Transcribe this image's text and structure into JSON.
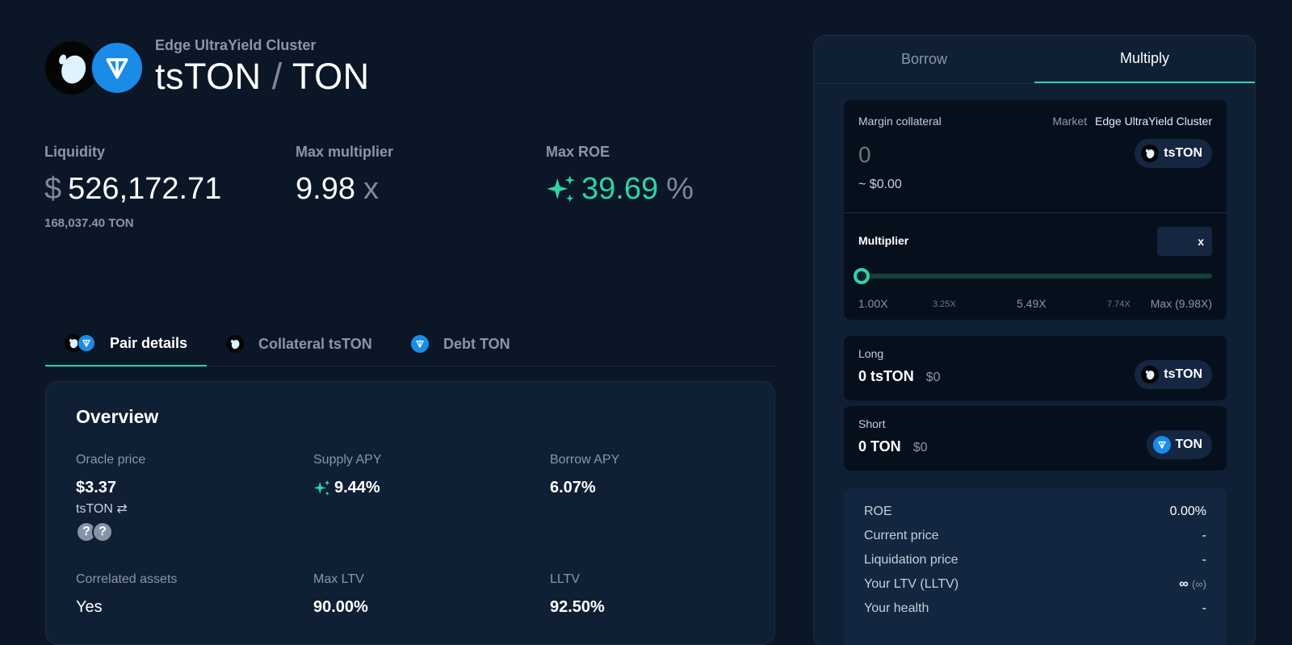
{
  "header": {
    "cluster_name": "Edge UltraYield Cluster",
    "collateral_symbol": "tsTON",
    "slash": "/",
    "debt_symbol": "TON"
  },
  "stats": {
    "liquidity": {
      "label": "Liquidity",
      "currency": "$",
      "value": "526,172.71",
      "sub": "168,037.40 TON"
    },
    "max_multiplier": {
      "label": "Max multiplier",
      "value": "9.98",
      "unit": "x"
    },
    "max_roe": {
      "label": "Max ROE",
      "value": "39.69",
      "unit": "%"
    }
  },
  "tabs": [
    {
      "label": "Pair details",
      "active": true
    },
    {
      "label": "Collateral tsTON",
      "active": false
    },
    {
      "label": "Debt TON",
      "active": false
    }
  ],
  "overview": {
    "title": "Overview",
    "oracle_price": {
      "label": "Oracle price",
      "value": "$3.37",
      "sub": "tsTON",
      "swap_icon": "⇄",
      "badges": [
        "?",
        "?"
      ]
    },
    "supply_apy": {
      "label": "Supply APY",
      "value": "9.44%"
    },
    "borrow_apy": {
      "label": "Borrow APY",
      "value": "6.07%"
    },
    "correlated_assets": {
      "label": "Correlated assets",
      "value": "Yes"
    },
    "max_ltv": {
      "label": "Max LTV",
      "value": "90.00%"
    },
    "lltv": {
      "label": "LLTV",
      "value": "92.50%"
    }
  },
  "panel": {
    "tabs": [
      {
        "label": "Borrow",
        "active": false
      },
      {
        "label": "Multiply",
        "active": true
      }
    ],
    "margin": {
      "label": "Margin collateral",
      "market_label": "Market",
      "market_value": "Edge UltraYield Cluster",
      "amount_placeholder": "0",
      "usd_value": "~ $0.00",
      "token": "tsTON"
    },
    "multiplier": {
      "label": "Multiplier",
      "unit": "x",
      "current_value": 1.0,
      "ticks": [
        "1.00X",
        "3.25X",
        "5.49X",
        "7.74X",
        "Max (9.98X)"
      ]
    },
    "long": {
      "label": "Long",
      "amount": "0 tsTON",
      "usd": "$0",
      "token": "tsTON"
    },
    "short": {
      "label": "Short",
      "amount": "0 TON",
      "usd": "$0",
      "token": "TON"
    },
    "summary": [
      {
        "label": "ROE",
        "value": "0.00%"
      },
      {
        "label": "Current price",
        "value": "-"
      },
      {
        "label": "Liquidation price",
        "value": "-"
      },
      {
        "label": "Your LTV (LLTV)",
        "value": "∞",
        "value_sub": "(∞)"
      },
      {
        "label": "Your health",
        "value": "-"
      }
    ]
  },
  "colors": {
    "background": "#0b1626",
    "card": "#0f1f34",
    "accent_green": "#2dd4a4",
    "ton_blue": "#1a8ce8"
  },
  "icons": [
    "tston-logo-icon",
    "ton-logo-icon",
    "sparkle-icon",
    "swap-icon",
    "question-icon"
  ]
}
